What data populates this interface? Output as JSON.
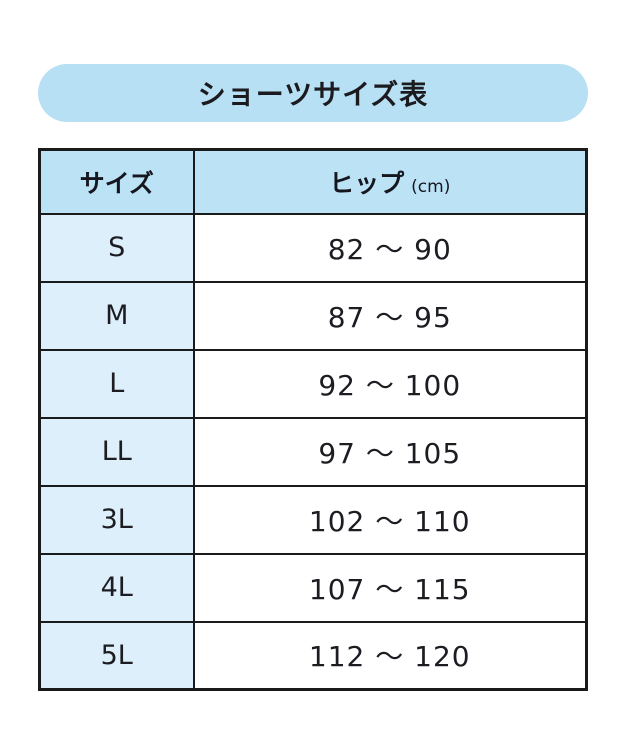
{
  "title": "ショーツサイズ表",
  "table": {
    "headers": {
      "size": "サイズ",
      "hip": "ヒップ",
      "hip_unit": "(cm)"
    },
    "rows": [
      {
        "size": "S",
        "hip": "82 〜 90"
      },
      {
        "size": "M",
        "hip": "87 〜 95"
      },
      {
        "size": "L",
        "hip": "92 〜 100"
      },
      {
        "size": "LL",
        "hip": "97 〜 105"
      },
      {
        "size": "3L",
        "hip": "102 〜 110"
      },
      {
        "size": "4L",
        "hip": "107 〜 115"
      },
      {
        "size": "5L",
        "hip": "112 〜 120"
      }
    ]
  },
  "colors": {
    "pill_background": "#b7e0f5",
    "header_background": "#bce2f6",
    "size_column_background": "#ddeffa",
    "value_cell_background": "#ffffff",
    "border": "#1a1a1a",
    "text": "#1d1d22",
    "page_background": "#ffffff"
  },
  "chart_data": {
    "type": "table",
    "title": "ショーツサイズ表",
    "columns": [
      "サイズ",
      "ヒップ (cm)"
    ],
    "rows": [
      [
        "S",
        "82 〜 90"
      ],
      [
        "M",
        "87 〜 95"
      ],
      [
        "L",
        "92 〜 100"
      ],
      [
        "LL",
        "97 〜 105"
      ],
      [
        "3L",
        "102 〜 110"
      ],
      [
        "4L",
        "107 〜 115"
      ],
      [
        "5L",
        "112 〜 120"
      ]
    ],
    "hip_ranges_cm": [
      {
        "size": "S",
        "min": 82,
        "max": 90
      },
      {
        "size": "M",
        "min": 87,
        "max": 95
      },
      {
        "size": "L",
        "min": 92,
        "max": 100
      },
      {
        "size": "LL",
        "min": 97,
        "max": 105
      },
      {
        "size": "3L",
        "min": 102,
        "max": 110
      },
      {
        "size": "4L",
        "min": 107,
        "max": 115
      },
      {
        "size": "5L",
        "min": 112,
        "max": 120
      }
    ]
  }
}
